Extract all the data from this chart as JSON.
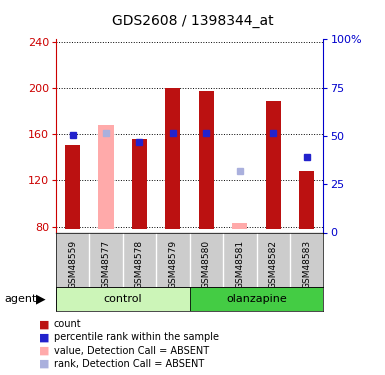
{
  "title": "GDS2608 / 1398344_at",
  "samples": [
    "GSM48559",
    "GSM48577",
    "GSM48578",
    "GSM48579",
    "GSM48580",
    "GSM48581",
    "GSM48582",
    "GSM48583"
  ],
  "count_values": [
    151,
    168,
    156,
    200,
    197,
    83,
    189,
    128
  ],
  "rank_values": [
    159,
    161,
    153,
    161,
    161,
    128,
    161,
    140
  ],
  "absent": [
    false,
    true,
    false,
    false,
    false,
    true,
    false,
    false
  ],
  "ylim_left": [
    75,
    242
  ],
  "yticks_left": [
    80,
    120,
    160,
    200,
    240
  ],
  "ybase": 78,
  "bar_color_present": "#bb1111",
  "bar_color_absent": "#ffaaaa",
  "rank_color_present": "#2222cc",
  "rank_color_absent": "#aab0dd",
  "left_axis_color": "#cc0000",
  "right_axis_color": "#0000cc",
  "control_color": "#ccf5b8",
  "olanzapine_color": "#44cc44",
  "sample_bg_color": "#cccccc",
  "legend_items": [
    {
      "label": "count",
      "color": "#bb1111"
    },
    {
      "label": "percentile rank within the sample",
      "color": "#2222cc"
    },
    {
      "label": "value, Detection Call = ABSENT",
      "color": "#ffaaaa"
    },
    {
      "label": "rank, Detection Call = ABSENT",
      "color": "#aab0dd"
    }
  ]
}
